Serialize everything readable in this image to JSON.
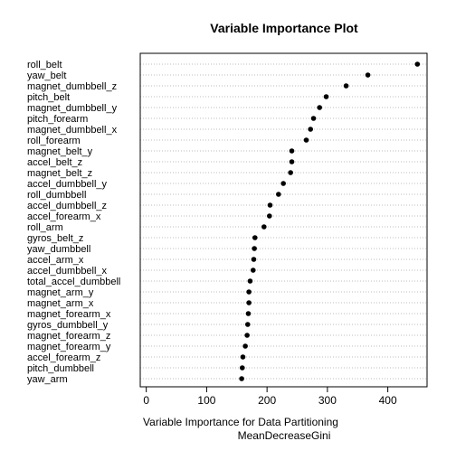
{
  "chart_data": {
    "type": "scatter",
    "subtype": "dotchart",
    "title": "Variable Importance Plot",
    "xlabel": "MeanDecreaseGini",
    "sub_xlabel": "Variable Importance for Data Partitioning",
    "xlim": [
      -10,
      465
    ],
    "xticks": [
      0,
      100,
      200,
      300,
      400
    ],
    "grid": true,
    "legend": "none",
    "colors": {
      "points": "#000000",
      "grid": "#bebebe",
      "axis": "#000000",
      "text": "#000000"
    },
    "categories": [
      "roll_belt",
      "yaw_belt",
      "magnet_dumbbell_z",
      "pitch_belt",
      "magnet_dumbbell_y",
      "pitch_forearm",
      "magnet_dumbbell_x",
      "roll_forearm",
      "magnet_belt_y",
      "accel_belt_z",
      "magnet_belt_z",
      "accel_dumbbell_y",
      "roll_dumbbell",
      "accel_dumbbell_z",
      "accel_forearm_x",
      "roll_arm",
      "gyros_belt_z",
      "yaw_dumbbell",
      "accel_arm_x",
      "accel_dumbbell_x",
      "total_accel_dumbbell",
      "magnet_arm_y",
      "magnet_arm_x",
      "magnet_forearm_x",
      "gyros_dumbbell_y",
      "magnet_forearm_z",
      "magnet_forearm_y",
      "accel_forearm_z",
      "pitch_dumbbell",
      "yaw_arm"
    ],
    "values": [
      449,
      367,
      331,
      298,
      287,
      277,
      272,
      265,
      241,
      241,
      239,
      227,
      219,
      205,
      204,
      195,
      180,
      179,
      178,
      177,
      172,
      170,
      170,
      169,
      168,
      167,
      164,
      160,
      159,
      158
    ]
  }
}
